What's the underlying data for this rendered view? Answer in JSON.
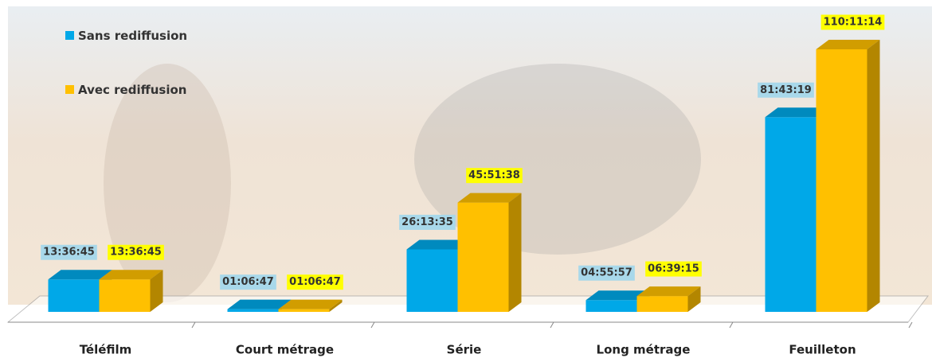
{
  "chart_data": {
    "type": "bar3d",
    "categories": [
      "Téléfilm",
      "Court métrage",
      "Série",
      "Long métrage",
      "Feuilleton"
    ],
    "series": [
      {
        "name": "Sans rediffusion",
        "color": "#00a8e8",
        "values": [
          13.6125,
          1.113056,
          26.226389,
          4.9325,
          81.721944
        ],
        "value_labels": [
          "13:36:45",
          "01:06:47",
          "26:13:35",
          "04:55:57",
          "81:43:19"
        ]
      },
      {
        "name": "Avec rediffusion",
        "color": "#ffc000",
        "values": [
          13.6125,
          1.113056,
          45.860556,
          6.654167,
          110.187222
        ],
        "value_labels": [
          "13:36:45",
          "01:06:47",
          "45:51:38",
          "06:39:15",
          "110:11:14"
        ]
      }
    ]
  }
}
